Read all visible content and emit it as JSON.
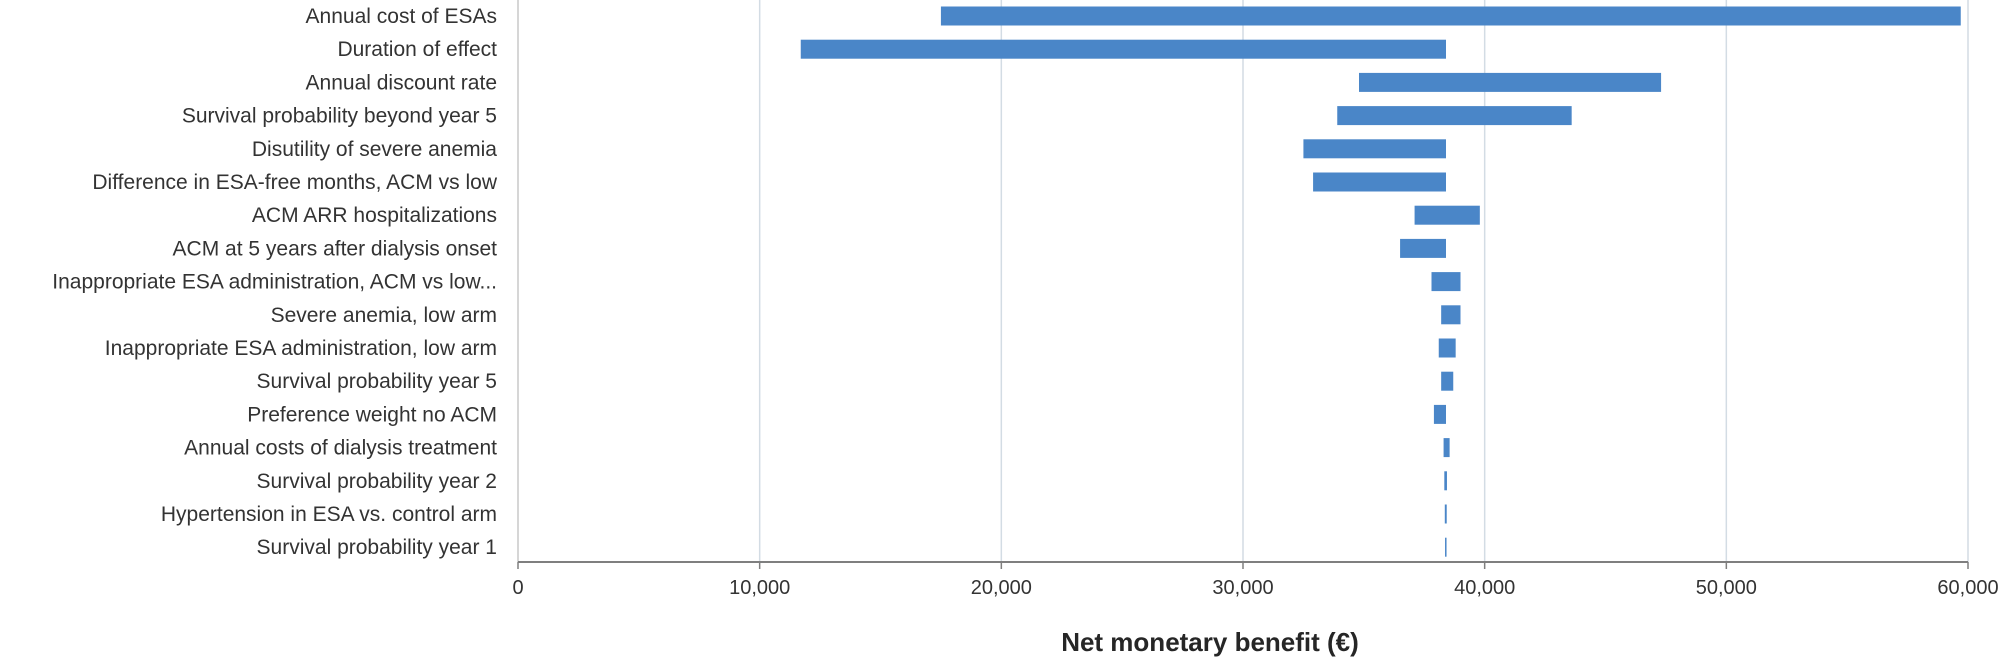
{
  "chart_data": {
    "type": "bar",
    "orientation": "horizontal",
    "variant": "tornado",
    "xlabel": "Net monetary benefit (€)",
    "ylabel": "",
    "title": "",
    "xlim": [
      0,
      60000
    ],
    "xticks": [
      0,
      10000,
      20000,
      30000,
      40000,
      50000,
      60000
    ],
    "xtick_labels": [
      "0",
      "10,000",
      "20,000",
      "30,000",
      "40,000",
      "50,000",
      "60,000"
    ],
    "grid": "vertical",
    "legend": "none",
    "bar_color": "#4a86c8",
    "categories": [
      "Annual cost of ESAs",
      "Duration of effect",
      "Annual discount rate",
      "Survival probability beyond year 5",
      "Disutility of severe anemia",
      "Difference in ESA-free months, ACM vs low",
      "ACM ARR hospitalizations",
      "ACM at 5 years after dialysis onset",
      "Inappropriate ESA administration, ACM vs low...",
      "Severe anemia, low arm",
      "Inappropriate ESA administration, low arm",
      "Survival probability year 5",
      "Preference weight no ACM",
      "Annual costs of dialysis treatment",
      "Survival probability year 2",
      "Hypertension in ESA vs. control arm",
      "Survival probability year 1"
    ],
    "ranges": [
      [
        17500,
        59700
      ],
      [
        11700,
        38400
      ],
      [
        34800,
        47300
      ],
      [
        33900,
        43600
      ],
      [
        32500,
        38400
      ],
      [
        32900,
        38400
      ],
      [
        37100,
        39800
      ],
      [
        36500,
        38400
      ],
      [
        37800,
        39000
      ],
      [
        38200,
        39000
      ],
      [
        38100,
        38800
      ],
      [
        38200,
        38700
      ],
      [
        37900,
        38400
      ],
      [
        38300,
        38550
      ],
      [
        38330,
        38440
      ],
      [
        38350,
        38430
      ],
      [
        38360,
        38420
      ]
    ]
  }
}
